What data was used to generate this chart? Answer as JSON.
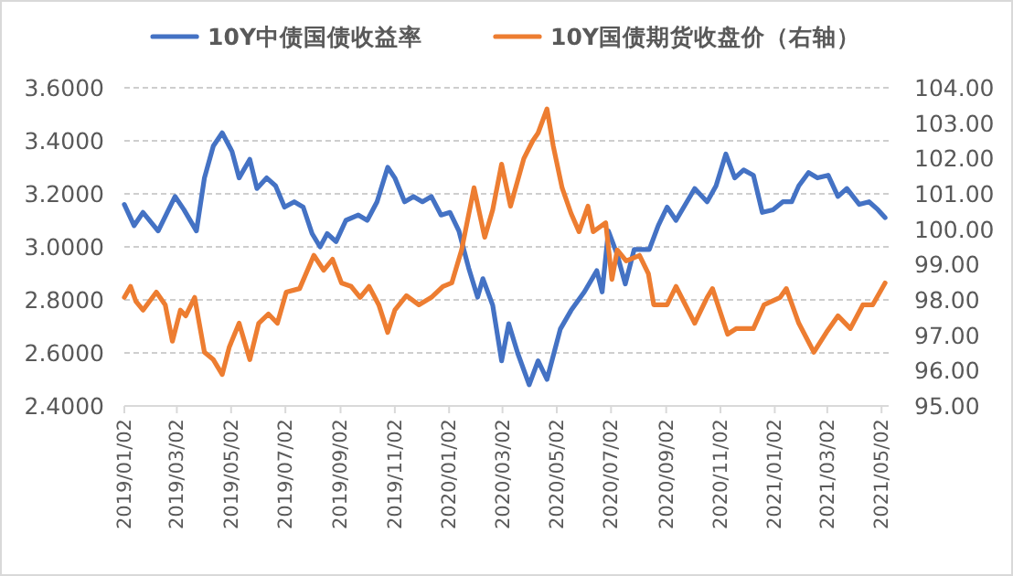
{
  "chart_data": {
    "type": "line",
    "legend": "top",
    "grid": "y",
    "line_style": "solid",
    "marker": "none",
    "xlim": [
      "2019-01-02",
      "2021-05-10"
    ],
    "xticks": [
      {
        "value": "2019-01-02",
        "label": "2019/01/02"
      },
      {
        "value": "2019-03-02",
        "label": "2019/03/02"
      },
      {
        "value": "2019-05-02",
        "label": "2019/05/02"
      },
      {
        "value": "2019-07-02",
        "label": "2019/07/02"
      },
      {
        "value": "2019-09-02",
        "label": "2019/09/02"
      },
      {
        "value": "2019-11-02",
        "label": "2019/11/02"
      },
      {
        "value": "2020-01-02",
        "label": "2020/01/02"
      },
      {
        "value": "2020-03-02",
        "label": "2020/03/02"
      },
      {
        "value": "2020-05-02",
        "label": "2020/05/02"
      },
      {
        "value": "2020-07-02",
        "label": "2020/07/02"
      },
      {
        "value": "2020-09-02",
        "label": "2020/09/02"
      },
      {
        "value": "2020-11-02",
        "label": "2020/11/02"
      },
      {
        "value": "2021-01-02",
        "label": "2021/01/02"
      },
      {
        "value": "2021-03-02",
        "label": "2021/03/02"
      },
      {
        "value": "2021-05-02",
        "label": "2021/05/02"
      }
    ],
    "ylim": [
      2.4,
      3.6
    ],
    "yticks": [
      {
        "value": 2.4,
        "label": "2.4000"
      },
      {
        "value": 2.6,
        "label": "2.6000"
      },
      {
        "value": 2.8,
        "label": "2.8000"
      },
      {
        "value": 3.0,
        "label": "3.0000"
      },
      {
        "value": 3.2,
        "label": "3.2000"
      },
      {
        "value": 3.4,
        "label": "3.4000"
      },
      {
        "value": 3.6,
        "label": "3.6000"
      }
    ],
    "y2lim": [
      95,
      104
    ],
    "y2ticks": [
      {
        "value": 95,
        "label": "95.00"
      },
      {
        "value": 96,
        "label": "96.00"
      },
      {
        "value": 97,
        "label": "97.00"
      },
      {
        "value": 98,
        "label": "98.00"
      },
      {
        "value": 99,
        "label": "99.00"
      },
      {
        "value": 100,
        "label": "100.00"
      },
      {
        "value": 101,
        "label": "101.00"
      },
      {
        "value": 102,
        "label": "102.00"
      },
      {
        "value": 103,
        "label": "103.00"
      },
      {
        "value": 104,
        "label": "104.00"
      }
    ],
    "series": [
      {
        "name": "10Y中债国债收益率",
        "color": "#4472c4",
        "x": [
          "2019-01-02",
          "2019-01-13",
          "2019-01-23",
          "2019-02-09",
          "2019-02-28",
          "2019-03-10",
          "2019-03-24",
          "2019-04-02",
          "2019-04-12",
          "2019-04-22",
          "2019-05-03",
          "2019-05-11",
          "2019-05-23",
          "2019-05-31",
          "2019-06-11",
          "2019-06-21",
          "2019-07-01",
          "2019-07-12",
          "2019-07-22",
          "2019-08-01",
          "2019-08-10",
          "2019-08-18",
          "2019-08-28",
          "2019-09-08",
          "2019-09-22",
          "2019-10-02",
          "2019-10-13",
          "2019-10-25",
          "2019-11-02",
          "2019-11-13",
          "2019-11-23",
          "2019-12-03",
          "2019-12-13",
          "2019-12-24",
          "2020-01-03",
          "2020-01-13",
          "2020-01-24",
          "2020-02-03",
          "2020-02-09",
          "2020-02-20",
          "2020-03-01",
          "2020-03-09",
          "2020-03-19",
          "2020-04-01",
          "2020-04-11",
          "2020-04-21",
          "2020-05-06",
          "2020-05-18",
          "2020-06-02",
          "2020-06-16",
          "2020-06-22",
          "2020-06-29",
          "2020-07-09",
          "2020-07-18",
          "2020-07-28",
          "2020-08-14",
          "2020-08-24",
          "2020-09-03",
          "2020-09-13",
          "2020-10-04",
          "2020-10-18",
          "2020-10-28",
          "2020-11-08",
          "2020-11-18",
          "2020-11-28",
          "2020-12-09",
          "2020-12-19",
          "2020-12-31",
          "2021-01-11",
          "2021-01-21",
          "2021-01-29",
          "2021-02-09",
          "2021-02-19",
          "2021-03-03",
          "2021-03-14",
          "2021-03-24",
          "2021-04-07",
          "2021-04-18",
          "2021-04-28",
          "2021-05-06"
        ],
        "values": [
          3.16,
          3.08,
          3.13,
          3.06,
          3.19,
          3.14,
          3.06,
          3.26,
          3.38,
          3.43,
          3.36,
          3.26,
          3.33,
          3.22,
          3.26,
          3.23,
          3.15,
          3.17,
          3.15,
          3.05,
          3.0,
          3.05,
          3.02,
          3.1,
          3.12,
          3.1,
          3.17,
          3.3,
          3.26,
          3.17,
          3.19,
          3.17,
          3.19,
          3.12,
          3.13,
          3.06,
          2.92,
          2.81,
          2.88,
          2.78,
          2.57,
          2.71,
          2.6,
          2.48,
          2.57,
          2.5,
          2.69,
          2.76,
          2.83,
          2.91,
          2.83,
          3.06,
          2.97,
          2.86,
          2.99,
          2.99,
          3.08,
          3.15,
          3.1,
          3.22,
          3.17,
          3.23,
          3.35,
          3.26,
          3.29,
          3.27,
          3.13,
          3.14,
          3.17,
          3.17,
          3.23,
          3.28,
          3.26,
          3.27,
          3.19,
          3.22,
          3.16,
          3.17,
          3.14,
          3.11
        ]
      },
      {
        "name": "10Y国债期货收盘价（右轴）",
        "color": "#ed7d31",
        "axis": "y2",
        "x": [
          "2019-01-02",
          "2019-01-09",
          "2019-01-15",
          "2019-01-23",
          "2019-02-07",
          "2019-02-17",
          "2019-02-25",
          "2019-03-06",
          "2019-03-12",
          "2019-03-22",
          "2019-04-02",
          "2019-04-12",
          "2019-04-22",
          "2019-04-30",
          "2019-05-11",
          "2019-05-23",
          "2019-06-02",
          "2019-06-13",
          "2019-06-23",
          "2019-07-03",
          "2019-07-18",
          "2019-08-03",
          "2019-08-14",
          "2019-08-24",
          "2019-09-03",
          "2019-09-14",
          "2019-09-24",
          "2019-10-04",
          "2019-10-15",
          "2019-10-25",
          "2019-11-02",
          "2019-11-15",
          "2019-11-29",
          "2019-12-13",
          "2019-12-26",
          "2020-01-05",
          "2020-01-16",
          "2020-01-30",
          "2020-02-11",
          "2020-02-20",
          "2020-03-01",
          "2020-03-11",
          "2020-03-26",
          "2020-04-05",
          "2020-04-11",
          "2020-04-21",
          "2020-04-28",
          "2020-05-08",
          "2020-05-18",
          "2020-05-27",
          "2020-06-06",
          "2020-06-12",
          "2020-06-26",
          "2020-07-03",
          "2020-07-09",
          "2020-07-19",
          "2020-08-03",
          "2020-08-13",
          "2020-08-19",
          "2020-09-03",
          "2020-09-13",
          "2020-10-04",
          "2020-10-18",
          "2020-10-24",
          "2020-11-10",
          "2020-11-20",
          "2020-12-09",
          "2020-12-21",
          "2021-01-08",
          "2021-01-15",
          "2021-01-29",
          "2021-02-15",
          "2021-03-01",
          "2021-03-14",
          "2021-03-28",
          "2021-04-11",
          "2021-04-22",
          "2021-05-06"
        ],
        "values": [
          98.07,
          98.38,
          97.96,
          97.71,
          98.22,
          97.86,
          96.83,
          97.71,
          97.55,
          98.07,
          96.52,
          96.31,
          95.89,
          96.67,
          97.34,
          96.31,
          97.34,
          97.6,
          97.34,
          98.22,
          98.32,
          99.26,
          98.84,
          99.15,
          98.48,
          98.38,
          98.07,
          98.38,
          97.86,
          97.08,
          97.71,
          98.12,
          97.86,
          98.07,
          98.38,
          98.48,
          99.41,
          101.17,
          99.77,
          100.55,
          101.84,
          100.65,
          102.0,
          102.5,
          102.72,
          103.4,
          102.36,
          101.17,
          100.45,
          99.93,
          100.65,
          99.93,
          100.18,
          98.58,
          99.41,
          99.1,
          99.26,
          98.74,
          97.86,
          97.86,
          98.38,
          97.34,
          98.07,
          98.32,
          97.03,
          97.19,
          97.19,
          97.86,
          98.07,
          98.32,
          97.34,
          96.52,
          97.08,
          97.55,
          97.19,
          97.86,
          97.86,
          98.48
        ]
      }
    ]
  }
}
